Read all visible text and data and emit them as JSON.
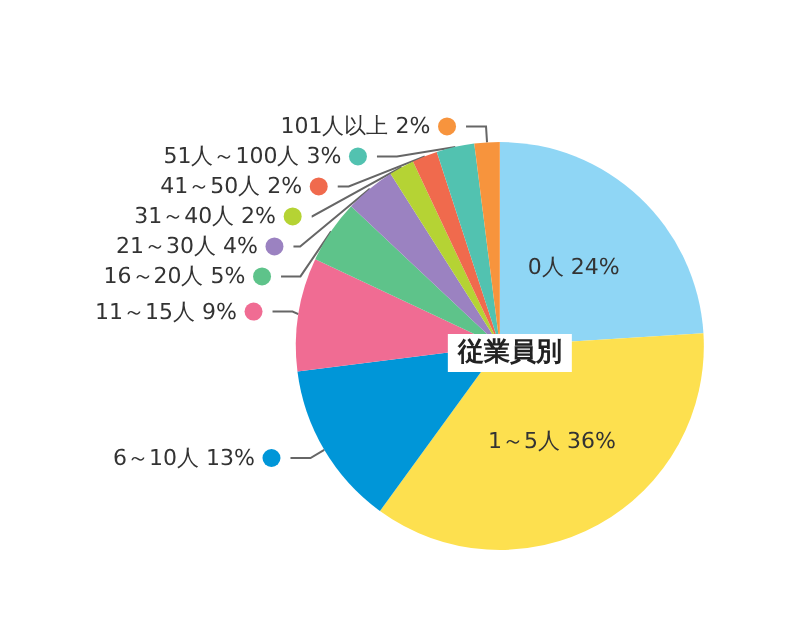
{
  "chart_data": {
    "type": "pie",
    "title": "従業員別",
    "categories": [
      "0人",
      "1～5人",
      "6～10人",
      "11～15人",
      "16～20人",
      "21～30人",
      "31～40人",
      "41～50人",
      "51人～100人",
      "101人以上"
    ],
    "values": [
      24,
      36,
      13,
      9,
      5,
      4,
      2,
      2,
      3,
      2
    ],
    "value_labels": [
      "24%",
      "36%",
      "13%",
      "9%",
      "5%",
      "4%",
      "2%",
      "2%",
      "3%",
      "2%"
    ],
    "colors": [
      "#8fd6f5",
      "#fde04f",
      "#0096d8",
      "#f06c93",
      "#5ec38a",
      "#9b82c1",
      "#b5d334",
      "#f06a4d",
      "#52c2b0",
      "#f7943d"
    ],
    "legend": "left"
  }
}
